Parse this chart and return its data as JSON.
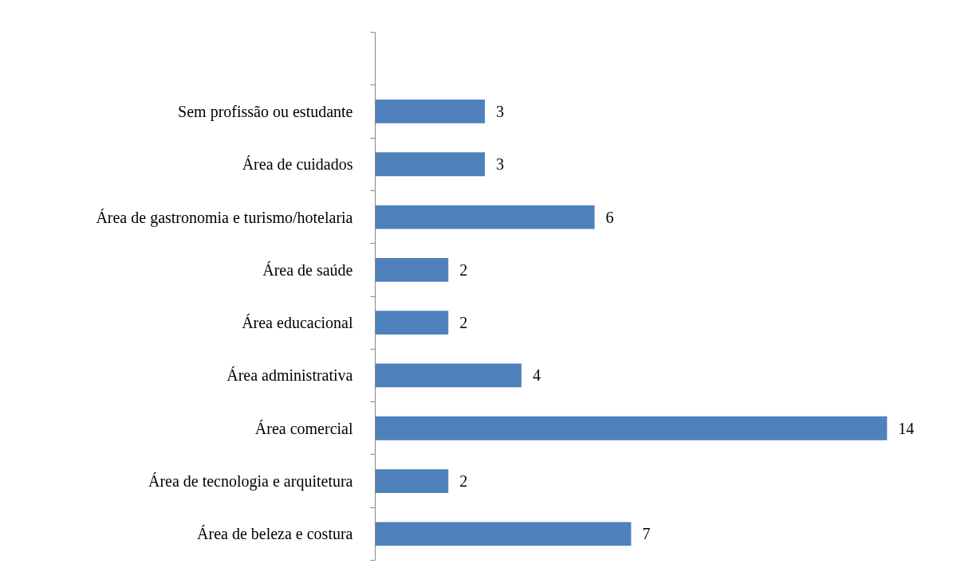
{
  "chart_data": {
    "type": "bar",
    "orientation": "horizontal",
    "categories": [
      null,
      "Sem profissão ou estudante",
      "Área de cuidados",
      "Área de gastronomia e turismo/hotelaria",
      "Área de saúde",
      "Área educacional",
      "Área administrativa",
      "Área comercial",
      "Área de tecnologia e arquitetura",
      "Área de beleza e costura"
    ],
    "values": [
      null,
      3,
      3,
      6,
      2,
      2,
      4,
      14,
      2,
      7
    ],
    "color": "#4f81bd",
    "data_labels": true,
    "tick_labels": "y"
  }
}
